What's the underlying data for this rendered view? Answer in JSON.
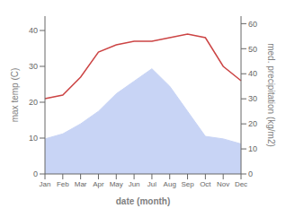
{
  "chart_data": {
    "type": "line",
    "xlabel": "date (month)",
    "ylabel": "max temp (C)",
    "y2label": "med. precipitation (kg/m2)",
    "categories": [
      "Jan",
      "Feb",
      "Mar",
      "Apr",
      "May",
      "Jun",
      "Jul",
      "Aug",
      "Sep",
      "Oct",
      "Nov",
      "Dec"
    ],
    "series": [
      {
        "type": "area",
        "axis": "y2",
        "color": "#c8d4f5",
        "values": [
          14,
          16,
          20,
          25,
          32,
          37,
          42,
          35,
          25,
          15,
          14,
          12
        ]
      },
      {
        "type": "line",
        "color": "#cc4444",
        "values": [
          21,
          22,
          27,
          34,
          36,
          37,
          37,
          38,
          39,
          38,
          30,
          26
        ]
      }
    ],
    "ylim": [
      0,
      44
    ],
    "yticks": [
      0,
      10,
      20,
      30,
      40
    ],
    "y2lim": [
      0,
      63
    ],
    "y2ticks": [
      0,
      10,
      20,
      30,
      40,
      50,
      60
    ],
    "grid": false
  }
}
